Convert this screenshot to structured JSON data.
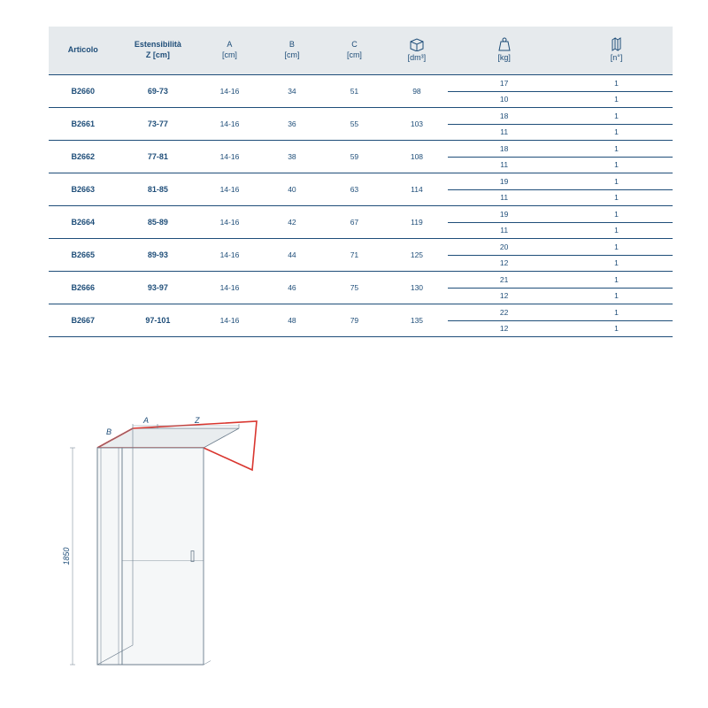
{
  "table": {
    "headers": {
      "articolo": "Articolo",
      "z": "Estensibilità\nZ [cm]",
      "a": "A\n[cm]",
      "b": "B\n[cm]",
      "c": "C\n[cm]",
      "dm": "[dm³]",
      "kg": "[kg]",
      "n": "[n°]"
    },
    "rows": [
      {
        "articolo": "B2660",
        "z": "69-73",
        "a": "14-16",
        "b": "34",
        "c": "51",
        "dm": "98",
        "kg": [
          "17",
          "10"
        ],
        "n": [
          "1",
          "1"
        ]
      },
      {
        "articolo": "B2661",
        "z": "73-77",
        "a": "14-16",
        "b": "36",
        "c": "55",
        "dm": "103",
        "kg": [
          "18",
          "11"
        ],
        "n": [
          "1",
          "1"
        ]
      },
      {
        "articolo": "B2662",
        "z": "77-81",
        "a": "14-16",
        "b": "38",
        "c": "59",
        "dm": "108",
        "kg": [
          "18",
          "11"
        ],
        "n": [
          "1",
          "1"
        ]
      },
      {
        "articolo": "B2663",
        "z": "81-85",
        "a": "14-16",
        "b": "40",
        "c": "63",
        "dm": "114",
        "kg": [
          "19",
          "11"
        ],
        "n": [
          "1",
          "1"
        ]
      },
      {
        "articolo": "B2664",
        "z": "85-89",
        "a": "14-16",
        "b": "42",
        "c": "67",
        "dm": "119",
        "kg": [
          "19",
          "11"
        ],
        "n": [
          "1",
          "1"
        ]
      },
      {
        "articolo": "B2665",
        "z": "89-93",
        "a": "14-16",
        "b": "44",
        "c": "71",
        "dm": "125",
        "kg": [
          "20",
          "12"
        ],
        "n": [
          "1",
          "1"
        ]
      },
      {
        "articolo": "B2666",
        "z": "93-97",
        "a": "14-16",
        "b": "46",
        "c": "75",
        "dm": "130",
        "kg": [
          "21",
          "12"
        ],
        "n": [
          "1",
          "1"
        ]
      },
      {
        "articolo": "B2667",
        "z": "97-101",
        "a": "14-16",
        "b": "48",
        "c": "79",
        "dm": "135",
        "kg": [
          "22",
          "12"
        ],
        "n": [
          "1",
          "1"
        ]
      }
    ]
  },
  "diagram": {
    "height_label": "1850",
    "labels": {
      "a": "A",
      "b": "B",
      "z": "Z"
    },
    "colors": {
      "stroke": "#6b7c8c",
      "accent": "#d9362f",
      "fill_top": "#e9edef",
      "fill_glass": "#f5f7f8",
      "text": "#1f4e79"
    }
  },
  "style": {
    "header_bg": "#e6eaed",
    "line": "#1f4e79",
    "text": "#1f4e79"
  }
}
